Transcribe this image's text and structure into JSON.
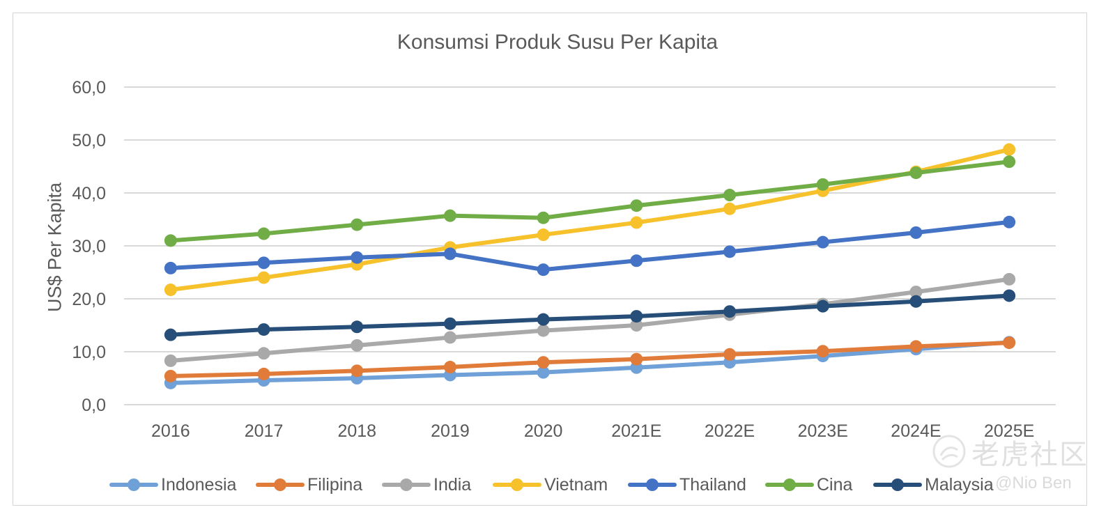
{
  "chart_data": {
    "type": "line",
    "title": "Konsumsi Produk Susu Per Kapita",
    "xlabel": "",
    "ylabel": "US$ Per Kapita",
    "categories": [
      "2016",
      "2017",
      "2018",
      "2019",
      "2020",
      "2021E",
      "2022E",
      "2023E",
      "2024E",
      "2025E"
    ],
    "ylim": [
      0,
      60
    ],
    "yticks": [
      "0,0",
      "10,0",
      "20,0",
      "30,0",
      "40,0",
      "50,0",
      "60,0"
    ],
    "ytick_values": [
      0,
      10,
      20,
      30,
      40,
      50,
      60
    ],
    "grid": true,
    "legend_position": "bottom",
    "series": [
      {
        "name": "Indonesia",
        "color": "#6FA0D8",
        "values": [
          4.1,
          4.6,
          5.0,
          5.6,
          6.1,
          7.0,
          8.0,
          9.2,
          10.5,
          11.8
        ]
      },
      {
        "name": "Filipina",
        "color": "#E07B39",
        "values": [
          5.4,
          5.8,
          6.4,
          7.1,
          8.0,
          8.6,
          9.5,
          10.1,
          11.0,
          11.7
        ]
      },
      {
        "name": "India",
        "color": "#A9A9A9",
        "values": [
          8.3,
          9.7,
          11.2,
          12.7,
          14.0,
          15.0,
          17.0,
          19.0,
          21.3,
          23.7
        ]
      },
      {
        "name": "Vietnam",
        "color": "#F6C12B",
        "values": [
          21.7,
          24.0,
          26.5,
          29.7,
          32.1,
          34.4,
          37.0,
          40.4,
          44.0,
          48.2
        ]
      },
      {
        "name": "Thailand",
        "color": "#4472C4",
        "values": [
          25.8,
          26.8,
          27.8,
          28.5,
          25.5,
          27.2,
          28.9,
          30.7,
          32.5,
          34.5
        ]
      },
      {
        "name": "Cina",
        "color": "#70AD47",
        "values": [
          31.0,
          32.3,
          34.0,
          35.7,
          35.3,
          37.6,
          39.6,
          41.6,
          43.8,
          45.9
        ]
      },
      {
        "name": "Malaysia",
        "color": "#264E78",
        "values": [
          13.2,
          14.2,
          14.7,
          15.3,
          16.1,
          16.7,
          17.6,
          18.6,
          19.5,
          20.6
        ]
      }
    ]
  },
  "watermark": {
    "site": "老虎社区",
    "handle": "@Nio Ben"
  }
}
